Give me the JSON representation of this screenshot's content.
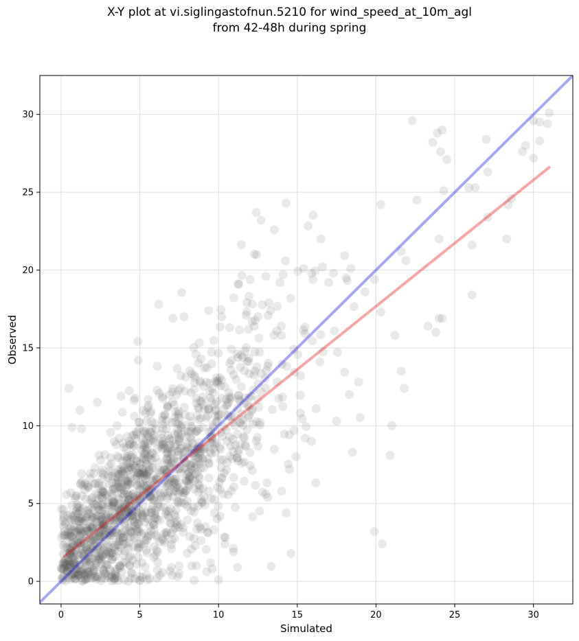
{
  "chart_data": {
    "type": "scatter",
    "title_lines": [
      "X-Y plot at vi.siglingastofnun.5210 for wind_speed_at_10m_agl",
      "from 42-48h during spring"
    ],
    "xlabel": "Simulated",
    "ylabel": "Observed",
    "xlim": [
      -1.35,
      32.5
    ],
    "ylim": [
      -1.45,
      32.5
    ],
    "xticks": [
      0,
      5,
      10,
      15,
      20,
      25,
      30
    ],
    "yticks": [
      0,
      5,
      10,
      15,
      20,
      25,
      30
    ],
    "grid": true,
    "lines": [
      {
        "kind": "1:1 reference",
        "color": "#0000ee",
        "x": [
          -1.35,
          32.5
        ],
        "y": [
          -1.35,
          32.5
        ]
      },
      {
        "kind": "linear fit",
        "color": "#ee0000",
        "x": [
          0.2,
          31
        ],
        "y": [
          1.6,
          26.6
        ]
      }
    ],
    "point_color": "#555555",
    "cloud": {
      "count": 1500,
      "fit_slope": 0.81,
      "fit_intercept": 1.45,
      "x_range": [
        0,
        19
      ]
    },
    "points": [
      [
        22.3,
        29.6
      ],
      [
        23.9,
        28.8
      ],
      [
        24.2,
        29.0
      ],
      [
        23.6,
        28.2
      ],
      [
        24.1,
        27.6
      ],
      [
        24.5,
        27.1
      ],
      [
        27.0,
        28.4
      ],
      [
        29.3,
        27.6
      ],
      [
        29.5,
        28.0
      ],
      [
        30.0,
        29.6
      ],
      [
        30.4,
        29.5
      ],
      [
        30.9,
        29.4
      ],
      [
        31.0,
        30.1
      ],
      [
        30.4,
        28.3
      ],
      [
        30.0,
        27.2
      ],
      [
        27.1,
        26.3
      ],
      [
        26.3,
        25.3
      ],
      [
        25.9,
        25.3
      ],
      [
        24.3,
        25.1
      ],
      [
        22.6,
        24.5
      ],
      [
        28.4,
        24.2
      ],
      [
        28.6,
        24.6
      ],
      [
        27.1,
        23.4
      ],
      [
        20.3,
        24.2
      ],
      [
        14.3,
        24.3
      ],
      [
        12.4,
        23.7
      ],
      [
        12.7,
        23.2
      ],
      [
        21.6,
        21.2
      ],
      [
        21.9,
        20.6
      ],
      [
        26.1,
        21.6
      ],
      [
        24.0,
        22.0
      ],
      [
        28.3,
        22.0
      ],
      [
        24.0,
        16.9
      ],
      [
        24.2,
        16.9
      ],
      [
        23.3,
        16.4
      ],
      [
        23.8,
        16.0
      ],
      [
        26.1,
        18.4
      ],
      [
        21.2,
        15.8
      ],
      [
        21.6,
        13.5
      ],
      [
        21.8,
        12.4
      ],
      [
        21.0,
        10.0
      ],
      [
        20.9,
        8.1
      ],
      [
        20.3,
        17.3
      ],
      [
        19.3,
        18.6
      ],
      [
        19.9,
        19.4
      ],
      [
        18.9,
        12.8
      ],
      [
        18.5,
        8.3
      ],
      [
        19.9,
        3.2
      ],
      [
        20.4,
        2.4
      ],
      [
        14.6,
        1.8
      ],
      [
        14.0,
        5.8
      ],
      [
        14.3,
        4.4
      ],
      [
        14.5,
        7.2
      ],
      [
        13.3,
        17.4
      ],
      [
        12.0,
        19.4
      ],
      [
        11.8,
        17.9
      ],
      [
        12.5,
        17.0
      ],
      [
        16.5,
        22.0
      ],
      [
        15.4,
        20.1
      ],
      [
        16.6,
        20.2
      ],
      [
        17.3,
        19.8
      ],
      [
        18.4,
        20.1
      ],
      [
        10.0,
        0.1
      ],
      [
        0.5,
        12.4
      ],
      [
        1.2,
        11.0
      ],
      [
        2.3,
        11.5
      ],
      [
        3.8,
        11.9
      ],
      [
        4.9,
        14.2
      ],
      [
        6.2,
        17.8
      ],
      [
        7.1,
        16.9
      ],
      [
        7.8,
        17.0
      ],
      [
        10.2,
        17.0
      ],
      [
        11.9,
        16.2
      ],
      [
        13.2,
        17.9
      ],
      [
        13.0,
        19.6
      ],
      [
        13.9,
        19.2
      ],
      [
        14.1,
        19.7
      ],
      [
        16.0,
        19.4
      ],
      [
        17.0,
        19.2
      ],
      [
        18.1,
        19.5
      ],
      [
        15.5,
        9.2
      ],
      [
        15.9,
        9.0
      ],
      [
        17.5,
        10.3
      ],
      [
        18.3,
        12.0
      ],
      [
        16.2,
        11.1
      ],
      [
        15.2,
        10.8
      ],
      [
        14.8,
        9.7
      ],
      [
        1.3,
        9.8
      ],
      [
        0.7,
        9.9
      ],
      [
        5.0,
        0.3
      ],
      [
        4.5,
        0.5
      ],
      [
        3.4,
        0.2
      ],
      [
        2.8,
        0.2
      ],
      [
        5.5,
        0.1
      ],
      [
        6.1,
        0.2
      ],
      [
        7.0,
        0.9
      ],
      [
        8.6,
        1.0
      ],
      [
        9.5,
        1.2
      ],
      [
        9.6,
        0.8
      ],
      [
        11.2,
        0.9
      ]
    ]
  }
}
